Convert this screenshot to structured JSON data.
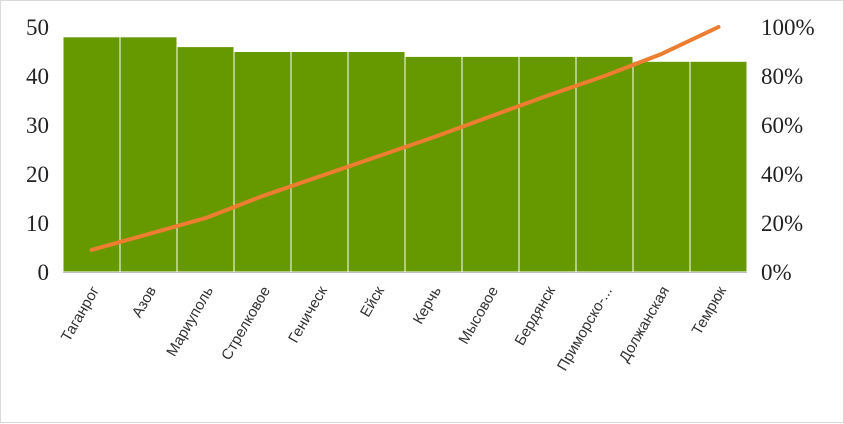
{
  "chart_data": {
    "type": "bar",
    "categories": [
      "Таганрог",
      "Азов",
      "Мариуполь",
      "Стрелковое",
      "Геническ",
      "Ейск",
      "Керчь",
      "Мысовое",
      "Бердянск",
      "Приморско-...",
      "Должанская",
      "Темрюк"
    ],
    "series": [
      {
        "type": "bar",
        "values": [
          48,
          48,
          46,
          45,
          45,
          45,
          44,
          44,
          44,
          44,
          43,
          43
        ],
        "color": "#669900"
      },
      {
        "type": "line",
        "axis": "right",
        "values": [
          9,
          15.5,
          22,
          31,
          39,
          47,
          55,
          63.5,
          72,
          80,
          89,
          100
        ],
        "color": "#ED7D31"
      }
    ],
    "ylim": [
      0,
      50
    ],
    "y_ticks": [
      "0",
      "10",
      "20",
      "30",
      "40",
      "50"
    ],
    "y2lim": [
      0,
      100
    ],
    "y2_ticks": [
      "0%",
      "20%",
      "40%",
      "60%",
      "80%",
      "100%"
    ],
    "grid": false,
    "legend": "none"
  }
}
